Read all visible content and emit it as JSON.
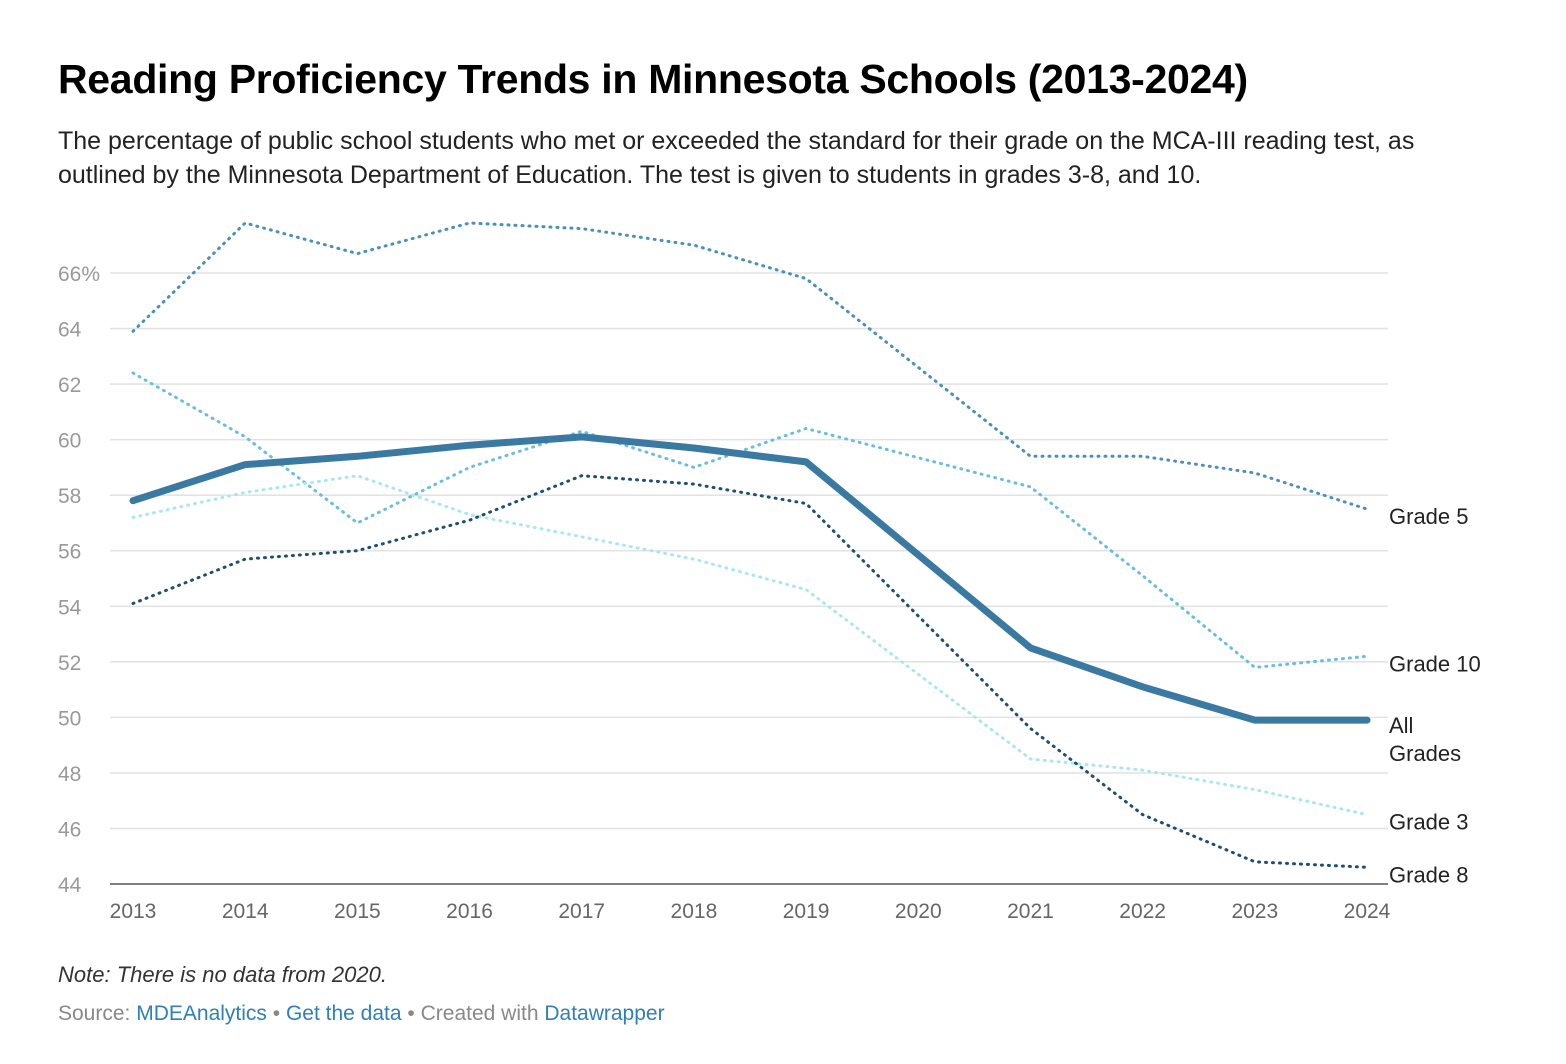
{
  "title": "Reading Proficiency Trends in Minnesota Schools (2013-2024)",
  "subtitle": "The percentage of public school students who met or exceeded the standard for their grade on the MCA-III reading test, as outlined by the Minnesota Department of Education. The test is given to students in grades 3-8, and 10.",
  "note": "Note: There is no data from 2020.",
  "footer": {
    "source_label": "Source:",
    "source_link": "MDEAnalytics",
    "separator": "•",
    "get_data": "Get the data",
    "created_with": "Created with",
    "datawrapper": "Datawrapper"
  },
  "chart_data": {
    "type": "line",
    "x": [
      2013,
      2014,
      2015,
      2016,
      2017,
      2018,
      2019,
      2020,
      2021,
      2022,
      2023,
      2024
    ],
    "ylim": [
      44,
      66
    ],
    "yticks": [
      44,
      46,
      48,
      50,
      52,
      54,
      56,
      58,
      60,
      62,
      64,
      66
    ],
    "ytick_labels": [
      "44",
      "46",
      "48",
      "50",
      "52",
      "54",
      "56",
      "58",
      "60",
      "62",
      "64",
      "66%"
    ],
    "grid": true,
    "series": [
      {
        "name": "Grade 5",
        "label_lines": [
          "Grade 5"
        ],
        "color": "#4a90b8",
        "style": "dotted",
        "values": [
          63.9,
          67.8,
          66.7,
          67.8,
          67.6,
          67.0,
          65.8,
          null,
          59.4,
          59.4,
          58.8,
          57.5
        ]
      },
      {
        "name": "Grade 10",
        "label_lines": [
          "Grade 10"
        ],
        "color": "#6bbde0",
        "style": "dotted",
        "values": [
          62.4,
          60.1,
          57.0,
          59.0,
          60.3,
          59.0,
          60.4,
          null,
          58.3,
          55.1,
          51.8,
          52.2
        ]
      },
      {
        "name": "All Grades",
        "label_lines": [
          "All",
          "Grades"
        ],
        "color": "#3a79a1",
        "style": "solid",
        "values": [
          57.8,
          59.1,
          59.4,
          59.8,
          60.1,
          59.7,
          59.2,
          null,
          52.5,
          51.1,
          49.9,
          49.9
        ]
      },
      {
        "name": "Grade 3",
        "label_lines": [
          "Grade 3"
        ],
        "color": "#a8e7f2",
        "style": "dotted",
        "values": [
          57.2,
          58.1,
          58.7,
          57.3,
          56.5,
          55.7,
          54.6,
          null,
          48.5,
          48.1,
          47.4,
          46.5
        ]
      },
      {
        "name": "Grade 8",
        "label_lines": [
          "Grade 8"
        ],
        "color": "#1d4f73",
        "style": "dotted",
        "values": [
          54.1,
          55.7,
          56.0,
          57.1,
          58.7,
          58.4,
          57.7,
          null,
          49.6,
          46.5,
          44.8,
          44.6
        ]
      }
    ]
  }
}
